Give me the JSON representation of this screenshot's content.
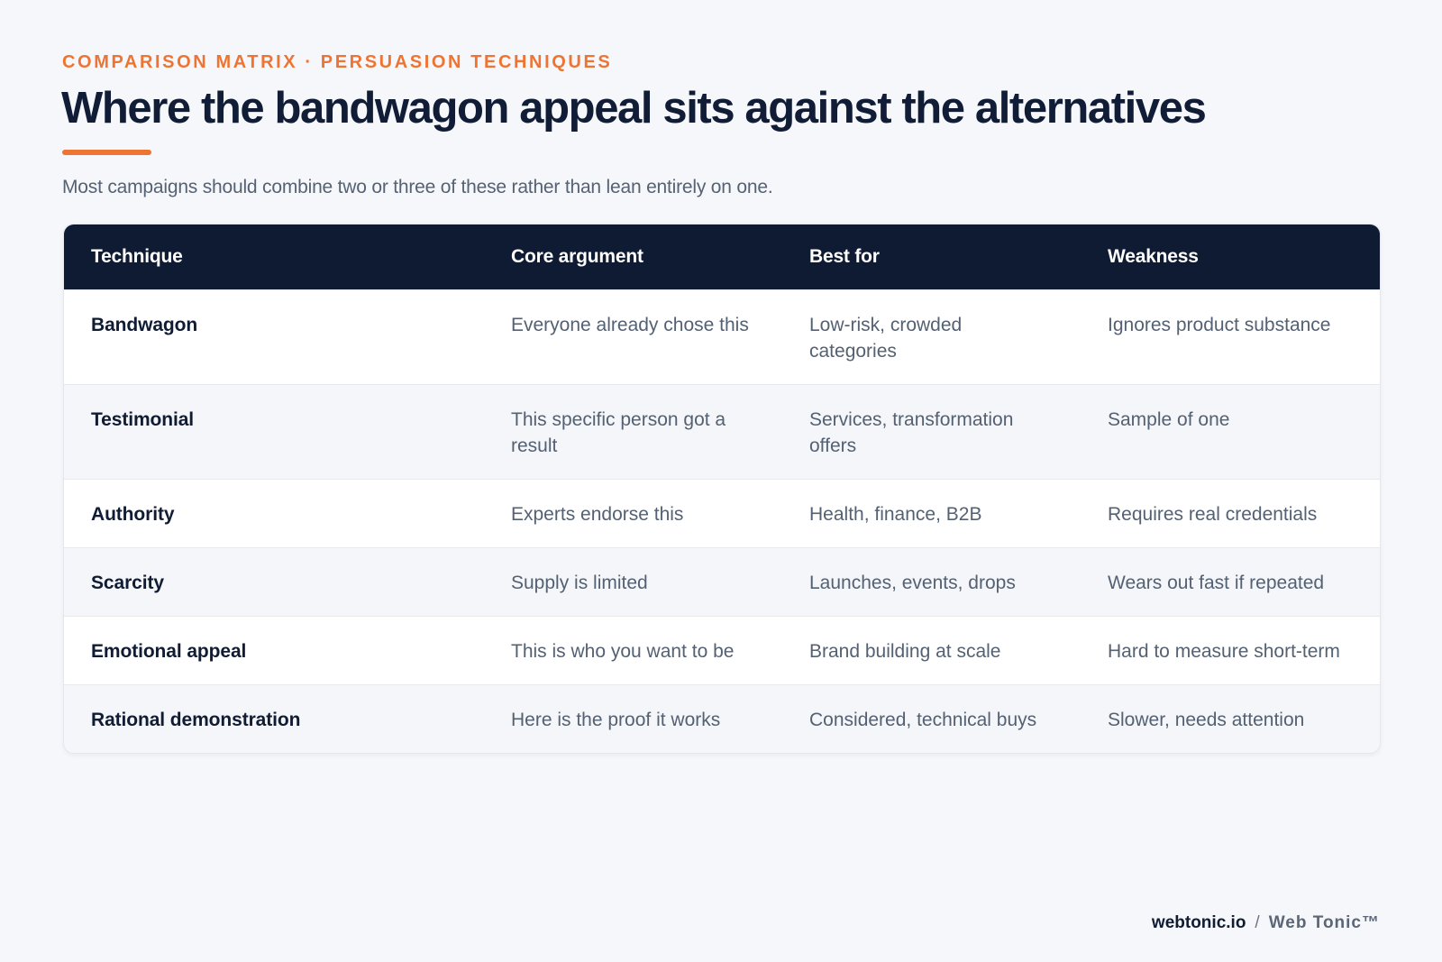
{
  "eyebrow": "COMPARISON MATRIX · PERSUASION TECHNIQUES",
  "title": "Where the bandwagon appeal sits against the alternatives",
  "subtitle": "Most campaigns should combine two or three of these rather than lean entirely on one.",
  "colors": {
    "accent": "#ee7433",
    "header_bg": "#0f1b33",
    "page_bg": "#f5f7fa",
    "alt_row_bg": "#f4f6f9"
  },
  "table": {
    "headers": [
      "Technique",
      "Core argument",
      "Best for",
      "Weakness"
    ],
    "rows": [
      {
        "technique": "Bandwagon",
        "core_argument": "Everyone already chose this",
        "best_for": "Low-risk, crowded categories",
        "weakness": "Ignores product substance"
      },
      {
        "technique": "Testimonial",
        "core_argument": "This specific person got a result",
        "best_for": "Services, transformation offers",
        "weakness": "Sample of one"
      },
      {
        "technique": "Authority",
        "core_argument": "Experts endorse this",
        "best_for": "Health, finance, B2B",
        "weakness": "Requires real credentials"
      },
      {
        "technique": "Scarcity",
        "core_argument": "Supply is limited",
        "best_for": "Launches, events, drops",
        "weakness": "Wears out fast if repeated"
      },
      {
        "technique": "Emotional appeal",
        "core_argument": "This is who you want to be",
        "best_for": "Brand building at scale",
        "weakness": "Hard to measure short-term"
      },
      {
        "technique": "Rational demonstration",
        "core_argument": "Here is the proof it works",
        "best_for": "Considered, technical buys",
        "weakness": "Slower, needs attention"
      }
    ]
  },
  "footer": {
    "domain": "webtonic.io",
    "separator": "/",
    "brand": "Web Tonic™"
  }
}
